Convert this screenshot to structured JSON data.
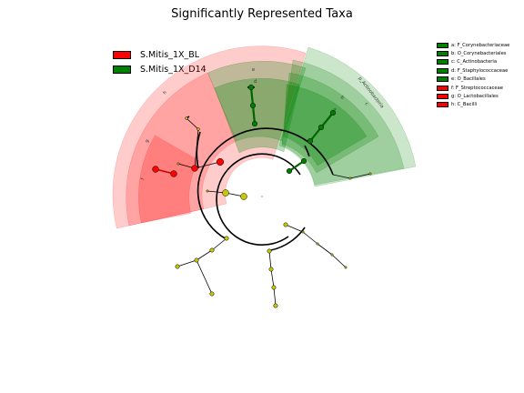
{
  "title": "Significantly Represented Taxa",
  "classes": [
    {
      "name": "S.Mitis_1X_BL",
      "color": "#ff0000"
    },
    {
      "name": "S.Mitis_1X_D14",
      "color": "#008000"
    }
  ],
  "taxa_legend": [
    {
      "label": "a: F_Corynebacteriaceae",
      "color": "#008000"
    },
    {
      "label": "b: O_Corynebacteriales",
      "color": "#008000"
    },
    {
      "label": "c: C_Actinobacteria",
      "color": "#008000"
    },
    {
      "label": "d: F_Staphylococcaceae",
      "color": "#008000"
    },
    {
      "label": "e: O_Bacillales",
      "color": "#008000"
    },
    {
      "label": "f: F_Streptococcaceae",
      "color": "#ff0000"
    },
    {
      "label": "g: O_Lactobacillales",
      "color": "#ff0000"
    },
    {
      "label": "h: C_Bacilli",
      "color": "#ff0000"
    }
  ],
  "clade_labels": {
    "a": "a",
    "b": "b",
    "c": "c",
    "d": "d",
    "e": "e",
    "f": "f",
    "g": "g",
    "h": "h",
    "phylum": "p_Actinobacteria"
  }
}
